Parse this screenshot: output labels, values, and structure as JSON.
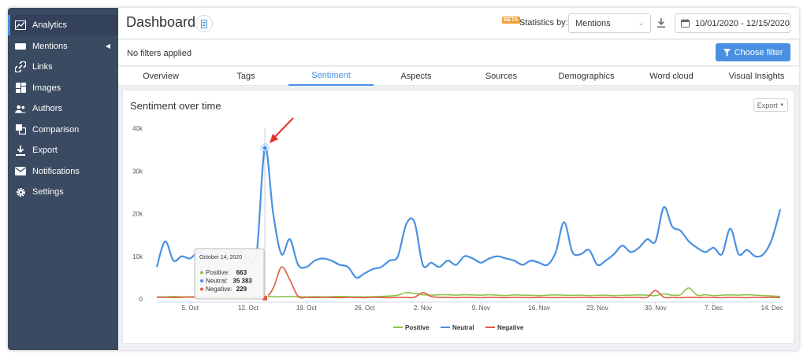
{
  "sidebar": {
    "items": [
      {
        "label": "Analytics",
        "icon": "chart-icon",
        "active": true
      },
      {
        "label": "Mentions",
        "icon": "mentions-icon",
        "has_caret": true
      },
      {
        "label": "Links",
        "icon": "link-icon"
      },
      {
        "label": "Images",
        "icon": "images-icon"
      },
      {
        "label": "Authors",
        "icon": "authors-icon"
      },
      {
        "label": "Comparison",
        "icon": "comparison-icon"
      },
      {
        "label": "Export",
        "icon": "export-icon"
      },
      {
        "label": "Notifications",
        "icon": "mail-icon"
      },
      {
        "label": "Settings",
        "icon": "gear-icon"
      }
    ]
  },
  "header": {
    "title": "Dashboard",
    "beta_badge": "BETA",
    "statistics_label": "Statistics by:",
    "statistics_value": "Mentions",
    "date_range": "10/01/2020 - 12/15/2020"
  },
  "filters": {
    "status": "No filters applied",
    "choose_button": "Choose filter"
  },
  "tabs": [
    "Overview",
    "Tags",
    "Sentiment",
    "Aspects",
    "Sources",
    "Demographics",
    "Word cloud",
    "Visual Insights"
  ],
  "active_tab": "Sentiment",
  "card": {
    "title": "Sentiment over time",
    "export_label": "Export"
  },
  "colors": {
    "accent": "#4a90e2",
    "positive": "#8bc34a",
    "neutral": "#4a90e2",
    "negative": "#e05a3f",
    "sidebar": "#3a4a61"
  },
  "chart_data": {
    "type": "line",
    "title": "Sentiment over time",
    "ylim": [
      0,
      40000
    ],
    "yticks": [
      "0",
      "10k",
      "20k",
      "30k",
      "40k"
    ],
    "xlim": [
      "2020-10-01",
      "2020-12-15"
    ],
    "xticks": [
      {
        "date": "2020-10-05",
        "label": "5. Oct"
      },
      {
        "date": "2020-10-12",
        "label": "12. Oct"
      },
      {
        "date": "2020-10-19",
        "label": "19. Oct"
      },
      {
        "date": "2020-10-26",
        "label": "26. Oct"
      },
      {
        "date": "2020-11-02",
        "label": "2. Nov"
      },
      {
        "date": "2020-11-09",
        "label": "9. Nov"
      },
      {
        "date": "2020-11-16",
        "label": "16. Nov"
      },
      {
        "date": "2020-11-23",
        "label": "23. Nov"
      },
      {
        "date": "2020-11-30",
        "label": "30. Nov"
      },
      {
        "date": "2020-12-07",
        "label": "7. Dec"
      },
      {
        "date": "2020-12-14",
        "label": "14. Dec"
      }
    ],
    "legend_position": "bottom-center",
    "dates": [
      "2020-10-01",
      "2020-10-02",
      "2020-10-03",
      "2020-10-04",
      "2020-10-05",
      "2020-10-06",
      "2020-10-07",
      "2020-10-08",
      "2020-10-09",
      "2020-10-10",
      "2020-10-11",
      "2020-10-12",
      "2020-10-13",
      "2020-10-14",
      "2020-10-15",
      "2020-10-16",
      "2020-10-17",
      "2020-10-18",
      "2020-10-19",
      "2020-10-20",
      "2020-10-21",
      "2020-10-22",
      "2020-10-23",
      "2020-10-24",
      "2020-10-25",
      "2020-10-26",
      "2020-10-27",
      "2020-10-28",
      "2020-10-29",
      "2020-10-30",
      "2020-10-31",
      "2020-11-01",
      "2020-11-02",
      "2020-11-03",
      "2020-11-04",
      "2020-11-05",
      "2020-11-06",
      "2020-11-07",
      "2020-11-08",
      "2020-11-09",
      "2020-11-10",
      "2020-11-11",
      "2020-11-12",
      "2020-11-13",
      "2020-11-14",
      "2020-11-15",
      "2020-11-16",
      "2020-11-17",
      "2020-11-18",
      "2020-11-19",
      "2020-11-20",
      "2020-11-21",
      "2020-11-22",
      "2020-11-23",
      "2020-11-24",
      "2020-11-25",
      "2020-11-26",
      "2020-11-27",
      "2020-11-28",
      "2020-11-29",
      "2020-11-30",
      "2020-12-01",
      "2020-12-02",
      "2020-12-03",
      "2020-12-04",
      "2020-12-05",
      "2020-12-06",
      "2020-12-07",
      "2020-12-08",
      "2020-12-09",
      "2020-12-10",
      "2020-12-11",
      "2020-12-12",
      "2020-12-13",
      "2020-12-14",
      "2020-12-15"
    ],
    "series": [
      {
        "name": "Positive",
        "color": "#8bc34a",
        "values": [
          500,
          500,
          600,
          500,
          500,
          600,
          500,
          500,
          550,
          500,
          500,
          600,
          550,
          663,
          500,
          550,
          600,
          550,
          500,
          550,
          500,
          550,
          600,
          550,
          500,
          500,
          550,
          600,
          700,
          900,
          1500,
          1300,
          1000,
          900,
          1000,
          1000,
          900,
          1000,
          950,
          900,
          1000,
          900,
          800,
          950,
          900,
          850,
          800,
          900,
          950,
          900,
          850,
          900,
          800,
          850,
          900,
          800,
          850,
          900,
          950,
          900,
          800,
          1200,
          900,
          1000,
          2600,
          900,
          1000,
          800,
          900,
          950,
          900,
          1000,
          900,
          800,
          700,
          600
        ]
      },
      {
        "name": "Neutral",
        "color": "#4a90e2",
        "values": [
          7500,
          13500,
          9000,
          10000,
          9500,
          11000,
          10000,
          11500,
          9000,
          10500,
          11000,
          9500,
          10500,
          35383,
          20000,
          10500,
          14000,
          8000,
          7500,
          9000,
          9500,
          9000,
          8000,
          7500,
          5000,
          6000,
          7000,
          7500,
          9000,
          10000,
          17500,
          18000,
          8000,
          8500,
          7500,
          9000,
          8000,
          10000,
          9500,
          8500,
          9500,
          10000,
          9500,
          9000,
          8000,
          9000,
          8500,
          8000,
          11000,
          18000,
          11000,
          10500,
          11500,
          8000,
          9000,
          10500,
          12500,
          11000,
          12000,
          14000,
          13500,
          21500,
          17000,
          16000,
          13500,
          12000,
          11000,
          12000,
          10500,
          16500,
          10500,
          11500,
          10000,
          10500,
          14000,
          21000
        ]
      },
      {
        "name": "Negative",
        "color": "#e05a3f",
        "values": [
          400,
          400,
          350,
          400,
          450,
          350,
          400,
          350,
          400,
          350,
          400,
          350,
          300,
          229,
          2500,
          7500,
          4500,
          600,
          400,
          350,
          400,
          350,
          300,
          400,
          350,
          300,
          400,
          350,
          300,
          400,
          350,
          400,
          1500,
          600,
          400,
          350,
          300,
          400,
          350,
          300,
          400,
          350,
          300,
          400,
          350,
          300,
          400,
          350,
          300,
          350,
          300,
          400,
          350,
          300,
          400,
          350,
          300,
          400,
          350,
          400,
          2000,
          400,
          350,
          300,
          400,
          350,
          400,
          350,
          300,
          400,
          350,
          300,
          400,
          350,
          400,
          300
        ]
      }
    ],
    "tooltip": {
      "date": "October 14, 2020",
      "rows": [
        {
          "label": "Positive:",
          "value": "663"
        },
        {
          "label": "Neutral:",
          "value": "35 383"
        },
        {
          "label": "Negative:",
          "value": "229"
        }
      ]
    }
  }
}
